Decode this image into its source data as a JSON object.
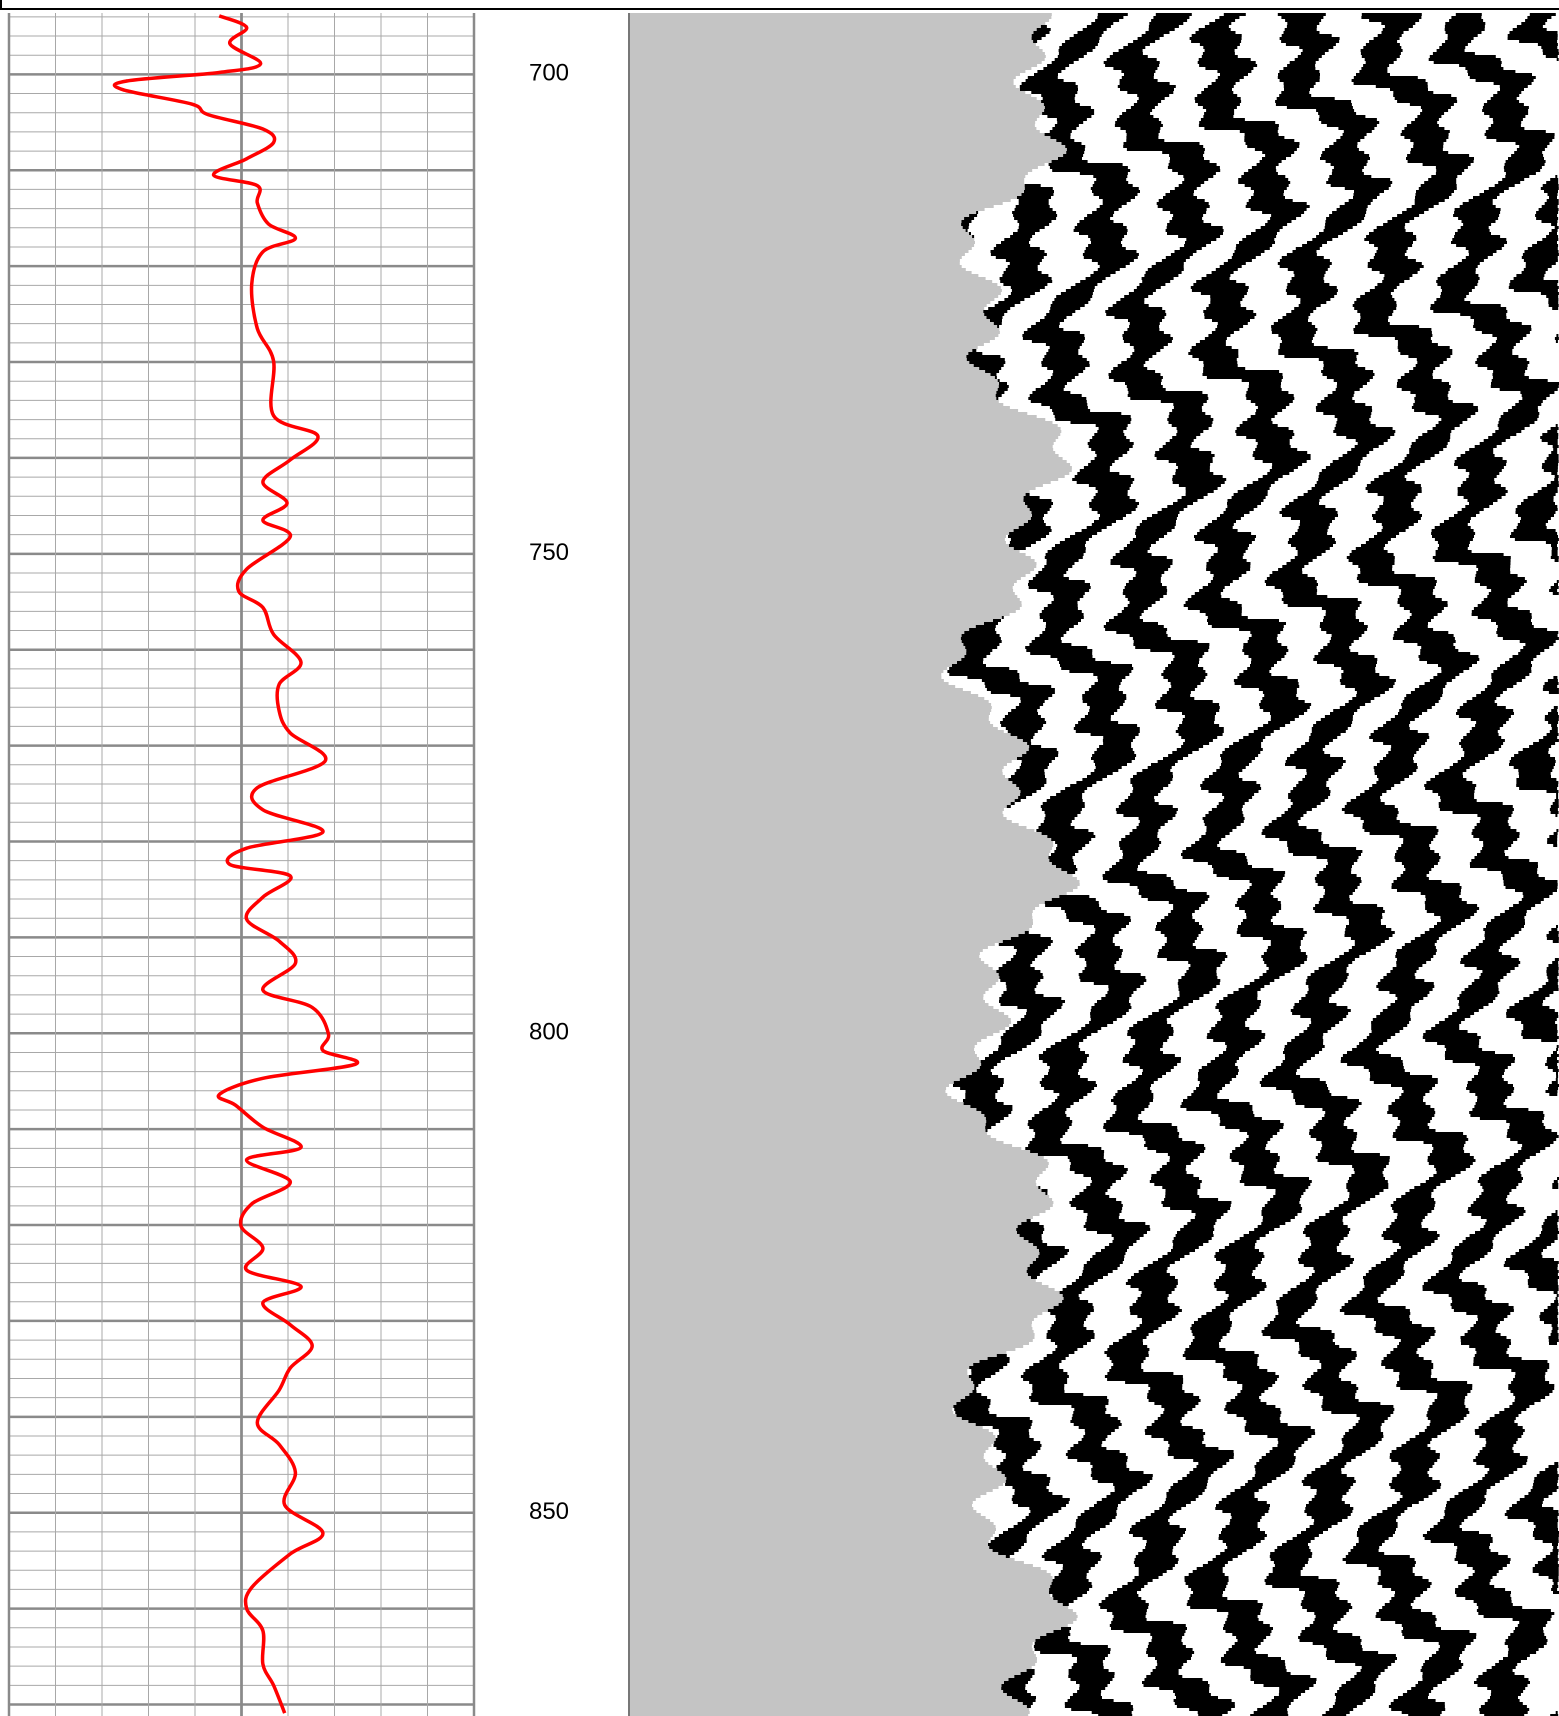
{
  "chart_data": {
    "type": "line",
    "color": "#ff0000",
    "invert_y": true,
    "xlim": [
      0,
      10
    ],
    "xticks": [
      0,
      1,
      2,
      3,
      4,
      5,
      6,
      7,
      8,
      9,
      10
    ],
    "xmajor": [
      5
    ],
    "ylim": [
      693.6,
      871.2
    ],
    "yticks": [
      700,
      750,
      800,
      850
    ],
    "ygrid": [
      694,
      696,
      698,
      700,
      702,
      704,
      706,
      708,
      710,
      712,
      714,
      716,
      718,
      720,
      722,
      724,
      726,
      728,
      730,
      732,
      734,
      736,
      738,
      740,
      742,
      744,
      746,
      748,
      750,
      752,
      754,
      756,
      758,
      760,
      762,
      764,
      766,
      768,
      770,
      772,
      774,
      776,
      778,
      780,
      782,
      784,
      786,
      788,
      790,
      792,
      794,
      796,
      798,
      800,
      802,
      804,
      806,
      808,
      810,
      812,
      814,
      816,
      818,
      820,
      822,
      824,
      826,
      828,
      830,
      832,
      834,
      836,
      838,
      840,
      842,
      844,
      846,
      848,
      850,
      852,
      854,
      856,
      858,
      860,
      862,
      864,
      866,
      868,
      870
    ],
    "ymajor_step": 10,
    "depth": [
      693.9,
      695.1,
      696.8,
      698.9,
      699.8,
      700.7,
      701.6,
      703.1,
      704.2,
      705.7,
      707.1,
      708.8,
      710.5,
      711.6,
      713.4,
      715.6,
      717.1,
      718.5,
      721.9,
      726.5,
      729.9,
      735.6,
      737.7,
      740.2,
      742.5,
      744.7,
      746.5,
      748.2,
      751.6,
      753.9,
      755.6,
      758.4,
      761.3,
      763.6,
      766.4,
      768.7,
      771.6,
      774.4,
      776.7,
      779.0,
      780.7,
      782.4,
      783.6,
      785.8,
      788.1,
      790.4,
      792.7,
      795.5,
      797.3,
      800.1,
      801.8,
      803.2,
      804.7,
      806.4,
      807.5,
      809.8,
      811.9,
      813.2,
      815.5,
      817.8,
      820.1,
      822.4,
      824.7,
      826.4,
      828.1,
      830.4,
      832.6,
      834.9,
      837.2,
      840.6,
      842.9,
      845.8,
      849.2,
      852.1,
      854.3,
      857.8,
      860.0,
      862.3,
      865.8,
      868.0,
      870.9
    ],
    "values": [
      4.52,
      5.11,
      4.75,
      5.41,
      4.52,
      2.52,
      2.45,
      3.93,
      4.28,
      5.46,
      5.69,
      5.11,
      4.4,
      5.34,
      5.34,
      5.58,
      6.16,
      5.46,
      5.22,
      5.34,
      5.69,
      5.69,
      6.64,
      6.05,
      5.46,
      5.98,
      5.46,
      6.05,
      5.11,
      4.94,
      5.46,
      5.69,
      6.28,
      5.81,
      5.81,
      6.05,
      6.8,
      5.34,
      5.46,
      6.75,
      5.11,
      4.75,
      6.05,
      5.46,
      5.11,
      5.81,
      6.16,
      5.46,
      6.52,
      6.87,
      6.75,
      7.46,
      5.46,
      4.52,
      4.87,
      5.46,
      6.28,
      5.11,
      6.05,
      5.22,
      4.99,
      5.46,
      5.11,
      6.28,
      5.46,
      6.05,
      6.52,
      6.05,
      5.81,
      5.34,
      5.81,
      6.16,
      5.93,
      6.75,
      6.05,
      5.22,
      5.11,
      5.46,
      5.46,
      5.69,
      5.93
    ]
  }
}
